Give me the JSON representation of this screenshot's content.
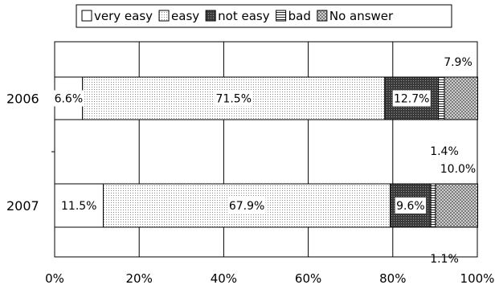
{
  "chart_data": {
    "type": "bar",
    "orientation": "horizontal",
    "stacked": true,
    "percent": true,
    "categories": [
      "2006",
      "2007"
    ],
    "series": [
      {
        "name": "very easy",
        "values": [
          6.6,
          11.5
        ],
        "labels": [
          "6.6%",
          "11.5%"
        ],
        "pattern": "white"
      },
      {
        "name": "easy",
        "values": [
          71.5,
          67.9
        ],
        "labels": [
          "71.5%",
          "67.9%"
        ],
        "pattern": "dots"
      },
      {
        "name": "not easy",
        "values": [
          12.7,
          9.6
        ],
        "labels": [
          "12.7%",
          "9.6%"
        ],
        "pattern": "dark"
      },
      {
        "name": "bad",
        "values": [
          1.4,
          1.1
        ],
        "labels": [
          "1.4%",
          "1.1%"
        ],
        "pattern": "hlines"
      },
      {
        "name": "No answer",
        "values": [
          7.9,
          10.0
        ],
        "labels": [
          "7.9%",
          "10.0%"
        ],
        "pattern": "checker"
      }
    ],
    "xlim": [
      0,
      100
    ],
    "xticks": [
      "0%",
      "20%",
      "40%",
      "60%",
      "80%",
      "100%"
    ],
    "grid": true,
    "legend": "top"
  }
}
